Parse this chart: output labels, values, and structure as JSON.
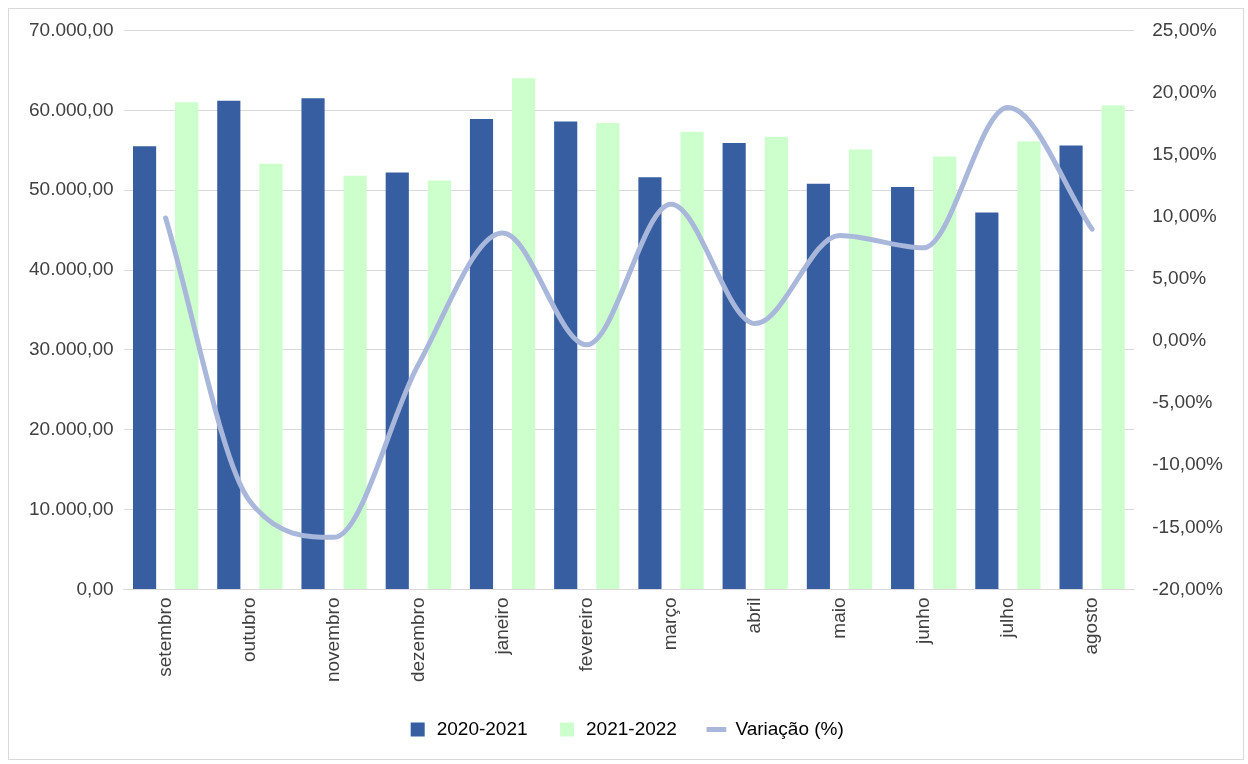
{
  "chart_data": {
    "type": "bar",
    "categories": [
      "setembro",
      "outubro",
      "novembro",
      "dezembro",
      "janeiro",
      "fevereiro",
      "março",
      "abril",
      "maio",
      "junho",
      "julho",
      "agosto"
    ],
    "series": [
      {
        "name": "2020-2021",
        "color": "#365ea1",
        "values": [
          55500,
          61200,
          61500,
          52200,
          58900,
          58600,
          51600,
          55900,
          50800,
          50400,
          47200,
          55600
        ]
      },
      {
        "name": "2021-2022",
        "color": "#ccffcc",
        "values": [
          61000,
          53300,
          51800,
          51200,
          64000,
          58400,
          57300,
          56700,
          55100,
          54200,
          56100,
          60600
        ]
      },
      {
        "name": "Variação (%)",
        "type": "line",
        "axis": "y2",
        "color": "#a9b7db",
        "values": [
          9.9,
          -12.9,
          -15.8,
          -1.9,
          8.7,
          -0.3,
          11.0,
          1.4,
          8.5,
          7.5,
          18.8,
          9.0
        ]
      }
    ],
    "ylim": [
      0,
      70000
    ],
    "yticks": [
      {
        "value": 0,
        "label": "0,00"
      },
      {
        "value": 10000,
        "label": "10.000,00"
      },
      {
        "value": 20000,
        "label": "20.000,00"
      },
      {
        "value": 30000,
        "label": "30.000,00"
      },
      {
        "value": 40000,
        "label": "40.000,00"
      },
      {
        "value": 50000,
        "label": "50.000,00"
      },
      {
        "value": 60000,
        "label": "60.000,00"
      },
      {
        "value": 70000,
        "label": "70.000,00"
      }
    ],
    "y2lim": [
      -20,
      25
    ],
    "y2ticks": [
      {
        "value": -20,
        "label": "-20,00%"
      },
      {
        "value": -15,
        "label": "-15,00%"
      },
      {
        "value": -10,
        "label": "-10,00%"
      },
      {
        "value": -5,
        "label": "-5,00%"
      },
      {
        "value": 0,
        "label": "0,00%"
      },
      {
        "value": 5,
        "label": "5,00%"
      },
      {
        "value": 10,
        "label": "10,00%"
      },
      {
        "value": 15,
        "label": "15,00%"
      },
      {
        "value": 20,
        "label": "20,00%"
      },
      {
        "value": 25,
        "label": "25,00%"
      }
    ],
    "grid": "y",
    "legend": "bottom",
    "marker": "none",
    "line_style": "solid"
  }
}
